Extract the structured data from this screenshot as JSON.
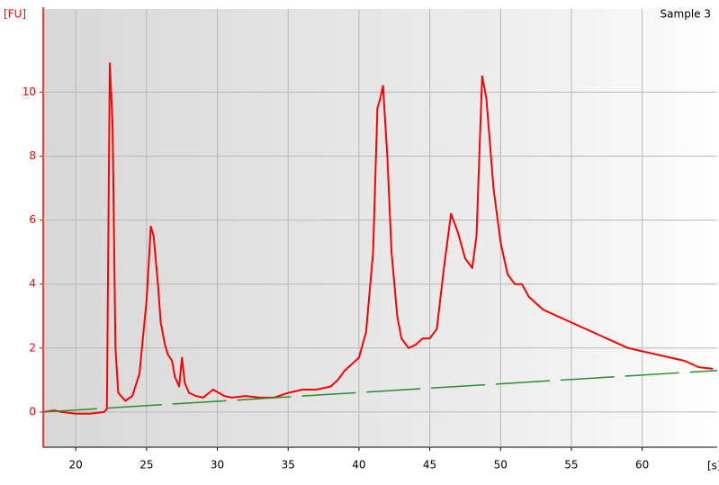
{
  "chart_data": {
    "type": "line",
    "title": "Sample 3",
    "y_label": "[FU]",
    "x_label": "[s]",
    "xlim": [
      17.7,
      65.3
    ],
    "ylim": [
      -1.1,
      12.6
    ],
    "xticks": [
      20,
      25,
      30,
      35,
      40,
      45,
      50,
      55,
      60
    ],
    "yticks": [
      0,
      2,
      4,
      6,
      8,
      10
    ],
    "grid": true,
    "series": [
      {
        "color": "#ff0000",
        "dashed": false,
        "x": [
          17.7,
          18.5,
          19,
          20,
          21,
          22,
          22.2,
          22.4,
          22.6,
          22.8,
          23,
          23.5,
          24,
          24.5,
          25,
          25.3,
          25.5,
          25.8,
          26,
          26.3,
          26.5,
          26.8,
          27,
          27.3,
          27.5,
          27.7,
          28,
          28.5,
          29,
          29.7,
          30.5,
          31,
          32,
          33,
          34,
          35,
          36,
          37,
          38,
          38.5,
          39,
          40,
          40.5,
          41,
          41.3,
          41.5,
          41.7,
          42,
          42.3,
          42.7,
          43,
          43.5,
          44,
          44.5,
          45,
          45.5,
          46,
          46.5,
          47,
          47.5,
          48,
          48.3,
          48.7,
          49,
          49.5,
          50,
          50.5,
          51,
          51.5,
          52,
          53,
          54,
          55,
          56,
          57,
          58,
          59,
          60,
          61,
          62,
          63,
          64,
          65
        ],
        "values": [
          0,
          0.05,
          0,
          -0.05,
          -0.05,
          0,
          0.1,
          10.9,
          9,
          2,
          0.6,
          0.35,
          0.5,
          1.2,
          3.5,
          5.8,
          5.5,
          4,
          2.8,
          2.1,
          1.8,
          1.6,
          1.1,
          0.8,
          1.7,
          0.9,
          0.6,
          0.5,
          0.45,
          0.7,
          0.5,
          0.45,
          0.5,
          0.45,
          0.45,
          0.6,
          0.7,
          0.7,
          0.8,
          1,
          1.3,
          1.7,
          2.5,
          5,
          9.5,
          9.8,
          10.2,
          8,
          5,
          3,
          2.3,
          2,
          2.1,
          2.3,
          2.3,
          2.6,
          4.5,
          6.2,
          5.6,
          4.8,
          4.5,
          5.5,
          10.5,
          9.8,
          7,
          5.3,
          4.3,
          4,
          4,
          3.6,
          3.2,
          3,
          2.8,
          2.6,
          2.4,
          2.2,
          2,
          1.9,
          1.8,
          1.7,
          1.6,
          1.4,
          1.35
        ]
      },
      {
        "color": "#2e8b2e",
        "dashed": true,
        "x": [
          17.7,
          65.3
        ],
        "values": [
          0,
          1.3
        ]
      }
    ]
  }
}
